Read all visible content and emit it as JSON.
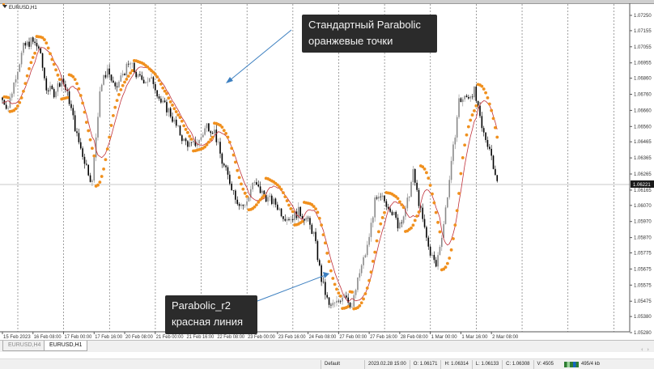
{
  "window": {
    "symbol_title": "EURUSD,H1"
  },
  "tabs": [
    {
      "label": "EURUSD,H4",
      "active": false
    },
    {
      "label": "EURUSD,H1",
      "active": true
    }
  ],
  "annotations": [
    {
      "lines": [
        "Стандартный Parabolic",
        "оранжевые точки"
      ]
    },
    {
      "lines": [
        "Parabolic_r2",
        "красная линия"
      ]
    }
  ],
  "status_bar": {
    "profile": "Default",
    "datetime": "2023.02.28 15:00",
    "open": "O: 1.06171",
    "high": "H: 1.06314",
    "low": "L: 1.06133",
    "close": "C: 1.06308",
    "volume": "V: 4505",
    "traffic": "495/4 kb"
  },
  "colors": {
    "psar_dots": "#f0901e",
    "psar_r2_line": "#c0303a",
    "annotation_bg": "#2b2b2b",
    "arrow": "#3c7fc0",
    "bear": "#000000",
    "bull": "#8a8a8a"
  },
  "chart_data": {
    "type": "candlestick",
    "title": "EURUSD,H1",
    "timeframe": "H1",
    "x_tick_labels": [
      "15 Feb 2023",
      "16 Feb 08:00",
      "17 Feb 00:00",
      "17 Feb 16:00",
      "20 Feb 08:00",
      "21 Feb 00:00",
      "21 Feb 16:00",
      "22 Feb 08:00",
      "23 Feb 00:00",
      "23 Feb 16:00",
      "24 Feb 08:00",
      "27 Feb 00:00",
      "27 Feb 16:00",
      "28 Feb 08:00",
      "1 Mar 00:00",
      "1 Mar 16:00",
      "2 Mar 08:00"
    ],
    "y_tick_labels": [
      "1.07250",
      "1.07155",
      "1.07055",
      "1.06955",
      "1.06860",
      "1.06760",
      "1.06660",
      "1.06560",
      "1.06465",
      "1.06365",
      "1.06265",
      "1.06165",
      "1.06070",
      "1.05970",
      "1.05870",
      "1.05775",
      "1.05675",
      "1.05575",
      "1.05475",
      "1.05380",
      "1.05280"
    ],
    "ylim": [
      1.052,
      1.0731
    ],
    "current_price": "1.06221",
    "grid": "vertical dashed (daily separators)",
    "close_sample_interval": "4h",
    "close_samples": [
      1.0674,
      1.0668,
      1.0688,
      1.0705,
      1.0709,
      1.0705,
      1.068,
      1.0677,
      1.0686,
      1.0672,
      1.065,
      1.0635,
      1.0621,
      1.0679,
      1.0692,
      1.0678,
      1.0689,
      1.0695,
      1.0686,
      1.0685,
      1.0684,
      1.0671,
      1.0666,
      1.0656,
      1.0647,
      1.0644,
      1.0647,
      1.0657,
      1.0653,
      1.0634,
      1.0622,
      1.061,
      1.0606,
      1.0621,
      1.0616,
      1.0611,
      1.0608,
      1.0601,
      1.0599,
      1.0603,
      1.0599,
      1.0589,
      1.0561,
      1.0544,
      1.0546,
      1.0553,
      1.0544,
      1.0565,
      1.0581,
      1.0609,
      1.0611,
      1.0606,
      1.0595,
      1.0603,
      1.0627,
      1.0603,
      1.0581,
      1.0569,
      1.0596,
      1.0632,
      1.0672,
      1.0674,
      1.0678,
      1.0654,
      1.0643,
      1.06221
    ],
    "indicators": [
      {
        "kind": "parabolic_sar",
        "style": "dots"
      },
      {
        "kind": "parabolic_r2",
        "style": "line"
      }
    ]
  }
}
